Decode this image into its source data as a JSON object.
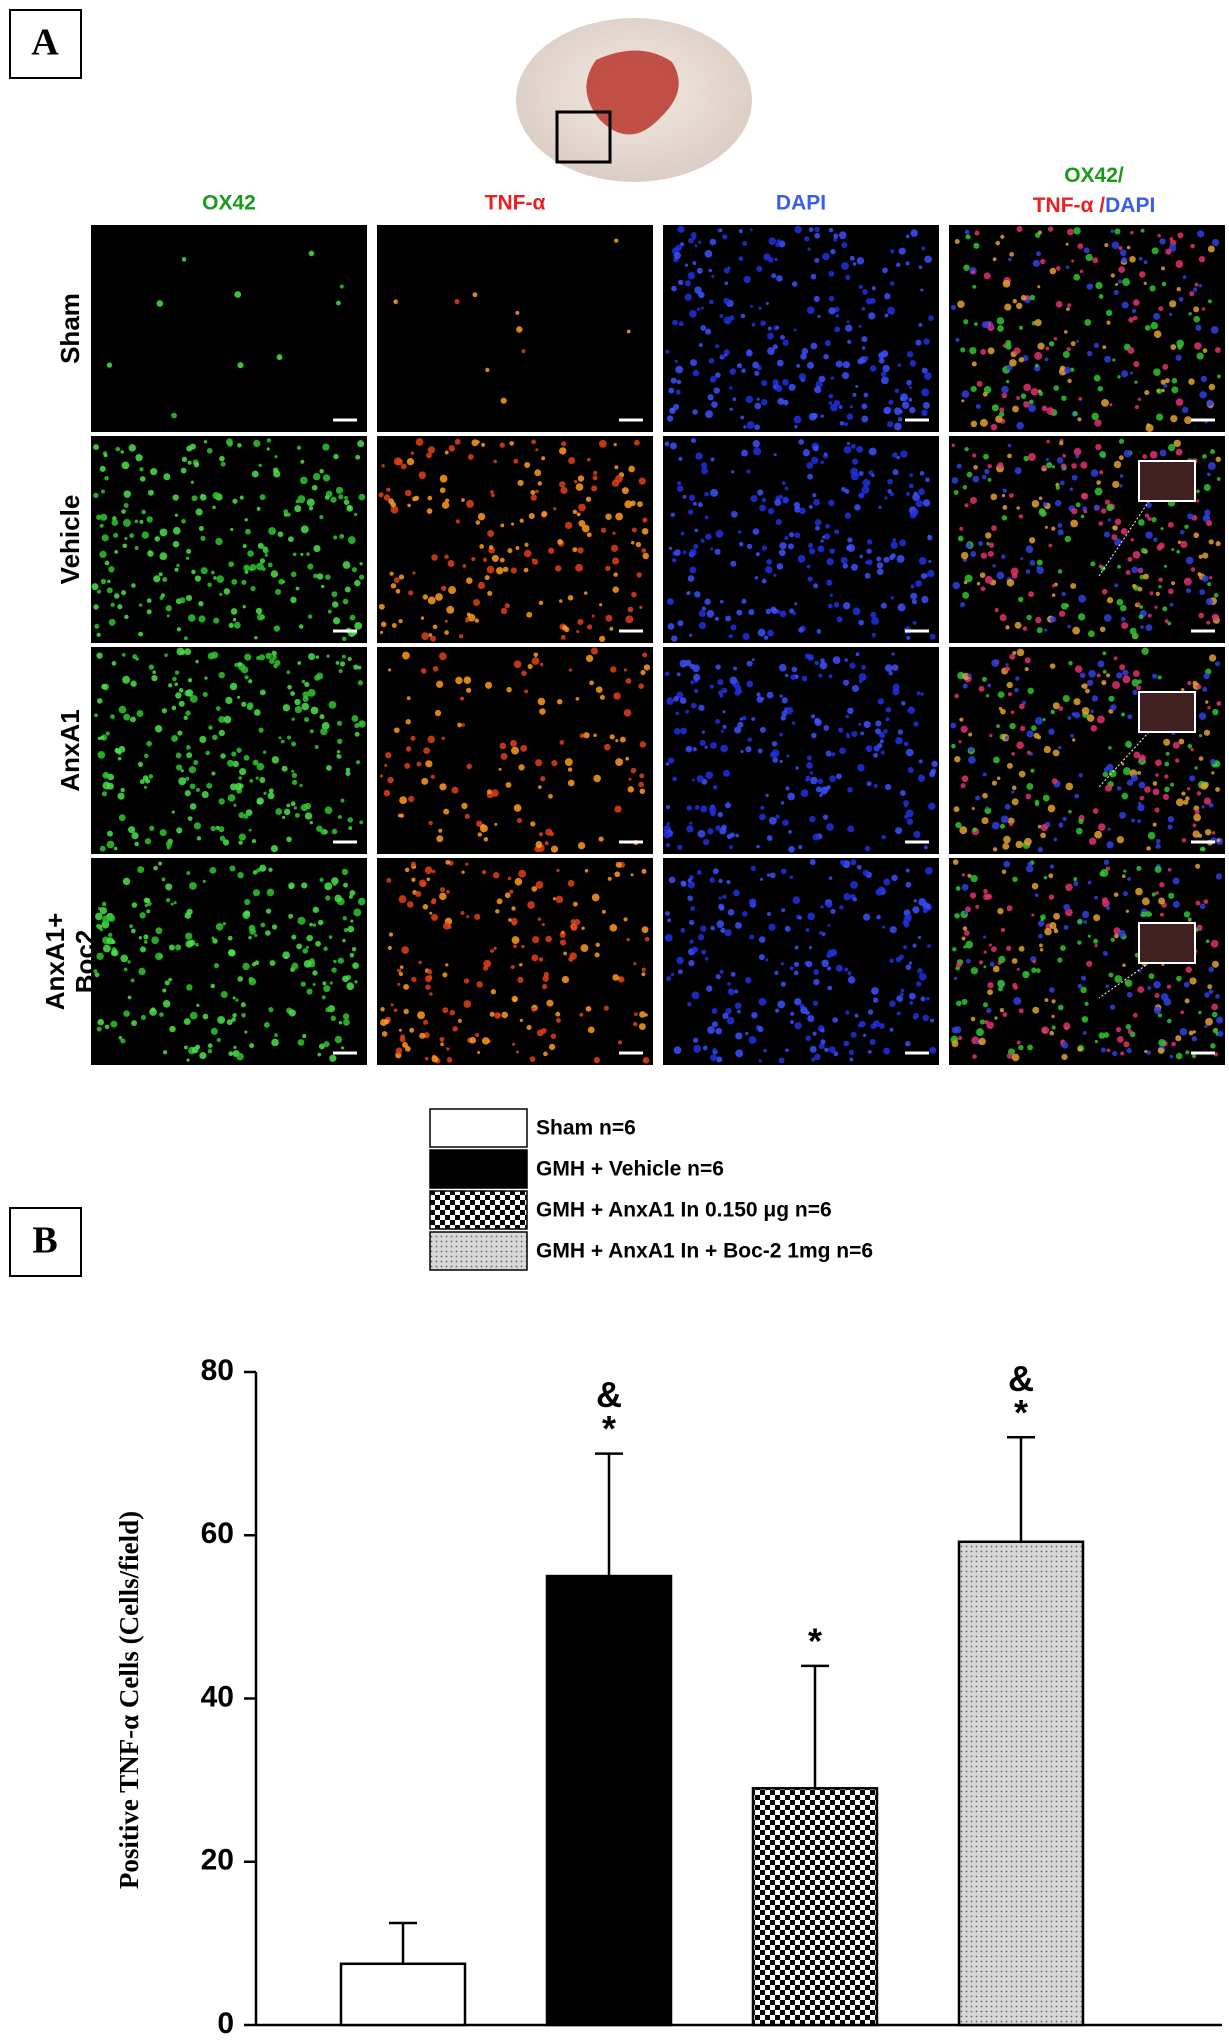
{
  "panel_a": {
    "label": "A",
    "columns": [
      "OX42",
      "TNF-α",
      "DAPI"
    ],
    "merged_header": [
      "OX42/",
      "TNF-α /",
      "DAPI"
    ],
    "rows": [
      [
        "Sham"
      ],
      [
        "Vehicle"
      ],
      [
        "AnxA1"
      ],
      [
        "AnxA1+",
        "Boc2"
      ]
    ]
  },
  "chart_data": {
    "type": "bar",
    "panel_label": "B",
    "ylabel": "Positive TNF-α Cells (Cells/field)",
    "categories": [
      null,
      null,
      null,
      null
    ],
    "values": [
      7.5,
      55,
      29,
      59.2
    ],
    "errors": [
      5,
      15,
      15,
      12.8
    ],
    "legend": [
      "Sham n=6",
      "GMH + Vehicle n=6",
      "GMH + AnxA1 In  0.150 μg n=6",
      "GMH + AnxA1 In + Boc-2 1mg n=6"
    ],
    "fills": [
      "white",
      "black",
      "checker",
      "dots"
    ],
    "annotations": [
      [],
      [
        "&",
        "*"
      ],
      [
        "*"
      ],
      [
        "&",
        "*"
      ]
    ],
    "ylim": [
      0,
      80
    ],
    "yticks": [
      0,
      20,
      40,
      60,
      80
    ]
  }
}
